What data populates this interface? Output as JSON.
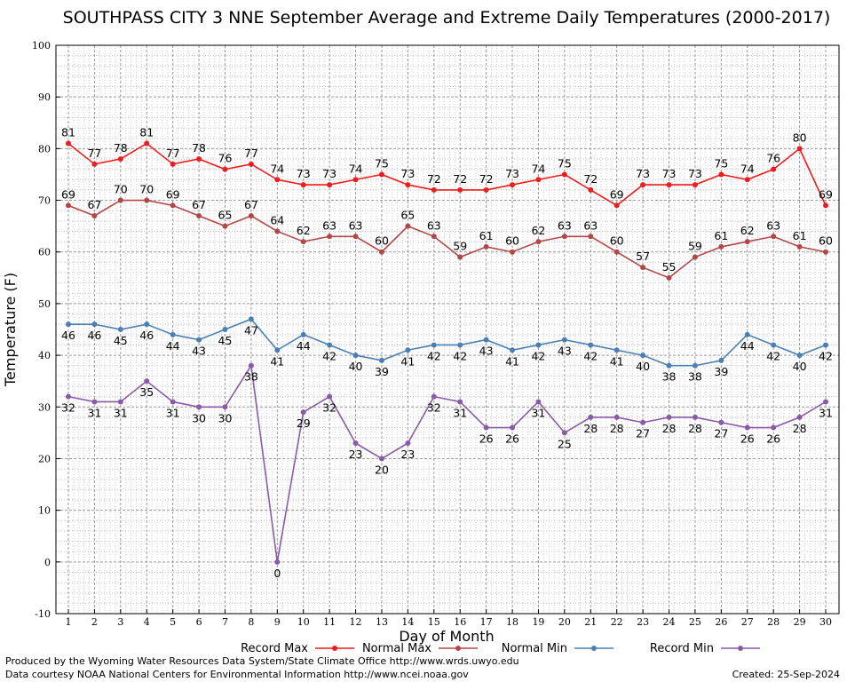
{
  "chart_data": {
    "type": "line",
    "title": "SOUTHPASS CITY 3 NNE September Average and Extreme Daily Temperatures (2000-2017)",
    "xlabel": "Day of Month",
    "ylabel": "Temperature (F)",
    "ylim": [
      -10,
      100
    ],
    "yticks": [
      -10,
      0,
      10,
      20,
      30,
      40,
      50,
      60,
      70,
      80,
      90,
      100
    ],
    "x": [
      1,
      2,
      3,
      4,
      5,
      6,
      7,
      8,
      9,
      10,
      11,
      12,
      13,
      14,
      15,
      16,
      17,
      18,
      19,
      20,
      21,
      22,
      23,
      24,
      25,
      26,
      27,
      28,
      29,
      30
    ],
    "grid": true,
    "legend_position": "bottom",
    "series": [
      {
        "name": "Record Max",
        "color": "#ee1c1c",
        "label_position": "above",
        "values": [
          81,
          77,
          78,
          81,
          77,
          78,
          76,
          77,
          74,
          73,
          73,
          74,
          75,
          73,
          72,
          72,
          72,
          73,
          74,
          75,
          72,
          69,
          73,
          73,
          73,
          75,
          74,
          76,
          80,
          69
        ]
      },
      {
        "name": "Normal Max",
        "color": "#b34747",
        "label_position": "above",
        "values": [
          69,
          67,
          70,
          70,
          69,
          67,
          65,
          67,
          64,
          62,
          63,
          63,
          60,
          65,
          63,
          59,
          61,
          60,
          62,
          63,
          63,
          60,
          57,
          55,
          59,
          61,
          62,
          63,
          61,
          60
        ]
      },
      {
        "name": "Normal Min",
        "color": "#4a7fb5",
        "label_position": "below",
        "values": [
          46,
          46,
          45,
          46,
          44,
          43,
          45,
          47,
          41,
          44,
          42,
          40,
          39,
          41,
          42,
          42,
          43,
          41,
          42,
          43,
          42,
          41,
          40,
          38,
          38,
          39,
          44,
          42,
          40,
          42
        ]
      },
      {
        "name": "Record Min",
        "color": "#8a5aa8",
        "label_position": "below",
        "values": [
          32,
          31,
          31,
          35,
          31,
          30,
          30,
          38,
          0,
          29,
          32,
          23,
          20,
          23,
          32,
          31,
          26,
          26,
          31,
          25,
          28,
          28,
          27,
          28,
          28,
          27,
          26,
          26,
          28,
          31
        ]
      }
    ]
  },
  "footer": {
    "produced_by": "Produced by the Wyoming Water Resources Data System/State Climate Office http://www.wrds.uwyo.edu",
    "courtesy": "Data courtesy NOAA National Centers for Environmental Information http://www.ncei.noaa.gov",
    "created": "Created:  25-Sep-2024"
  }
}
